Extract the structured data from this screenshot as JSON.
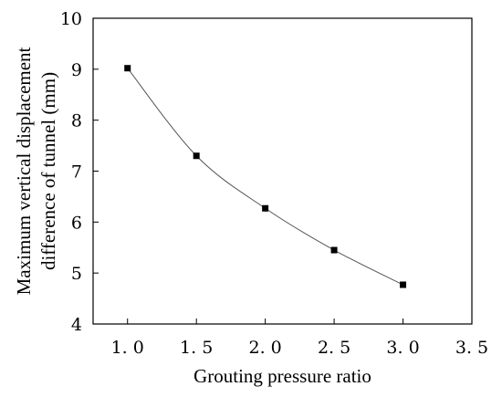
{
  "chart_data": {
    "type": "line",
    "title": "",
    "xlabel": "Grouting pressure ratio",
    "ylabel_lines": [
      "Maximum vertical displacement",
      "difference of tunnel (mm)"
    ],
    "xlim": [
      0.75,
      3.5
    ],
    "ylim": [
      4,
      10
    ],
    "xticks": [
      1.0,
      1.5,
      2.0,
      2.5,
      3.0,
      3.5
    ],
    "xtick_labels": [
      "1. 0",
      "1. 5",
      "2. 0",
      "2. 5",
      "3. 0",
      "3. 5"
    ],
    "yticks": [
      4,
      5,
      6,
      7,
      8,
      9,
      10
    ],
    "ytick_labels": [
      "4",
      "5",
      "6",
      "7",
      "8",
      "9",
      "10"
    ],
    "grid": false,
    "series": [
      {
        "x": [
          1.0,
          1.5,
          2.0,
          2.5,
          3.0
        ],
        "y": [
          9.02,
          7.3,
          6.27,
          5.45,
          4.77
        ],
        "marker": "square",
        "color": "#000000",
        "line_color": "#555555"
      }
    ]
  }
}
